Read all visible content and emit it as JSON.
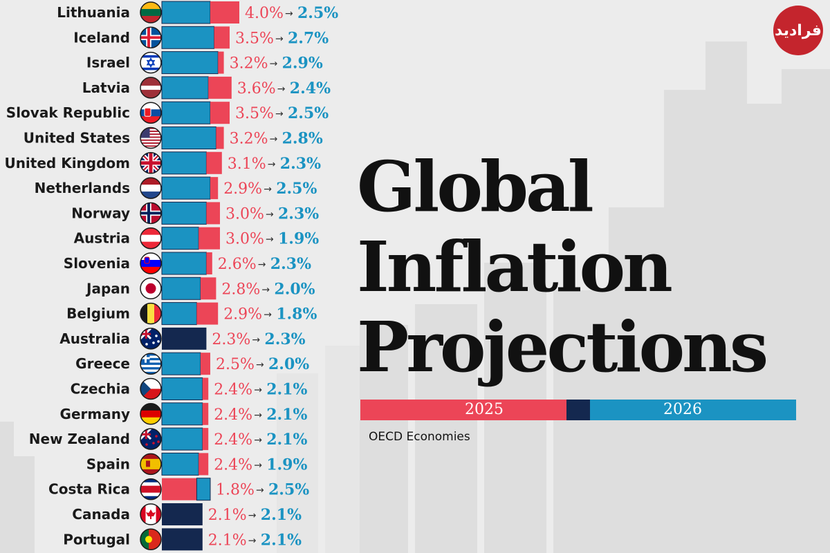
{
  "title": {
    "line1": "Global",
    "line2": "Inflation",
    "line3": "Projections"
  },
  "legend": {
    "label_2025": "2025",
    "label_2026": "2026"
  },
  "subtitle": "OECD Economies",
  "logo": {
    "text": "فرادید"
  },
  "colors": {
    "y2025": "#ec4557",
    "y2026": "#1b93c2",
    "equal": "#14284f"
  },
  "chart_data": {
    "type": "bar",
    "title": "Global Inflation Projections",
    "subtitle": "OECD Economies",
    "series": [
      {
        "name": "2025",
        "color": "#ec4557"
      },
      {
        "name": "2026",
        "color": "#1b93c2"
      }
    ],
    "rows": [
      {
        "country": "Lithuania",
        "flag": "lithuania-flag",
        "v2025": 4.0,
        "v2026": 2.5,
        "t2025": "4.0%",
        "t2026": "2.5%"
      },
      {
        "country": "Iceland",
        "flag": "iceland-flag",
        "v2025": 3.5,
        "v2026": 2.7,
        "t2025": "3.5%",
        "t2026": "2.7%"
      },
      {
        "country": "Israel",
        "flag": "israel-flag",
        "v2025": 3.2,
        "v2026": 2.9,
        "t2025": "3.2%",
        "t2026": "2.9%"
      },
      {
        "country": "Latvia",
        "flag": "latvia-flag",
        "v2025": 3.6,
        "v2026": 2.4,
        "t2025": "3.6%",
        "t2026": "2.4%"
      },
      {
        "country": "Slovak Republic",
        "flag": "slovakia-flag",
        "v2025": 3.5,
        "v2026": 2.5,
        "t2025": "3.5%",
        "t2026": "2.5%"
      },
      {
        "country": "United States",
        "flag": "usa-flag",
        "v2025": 3.2,
        "v2026": 2.8,
        "t2025": "3.2%",
        "t2026": "2.8%"
      },
      {
        "country": "United Kingdom",
        "flag": "uk-flag",
        "v2025": 3.1,
        "v2026": 2.3,
        "t2025": "3.1%",
        "t2026": "2.3%"
      },
      {
        "country": "Netherlands",
        "flag": "netherlands-flag",
        "v2025": 2.9,
        "v2026": 2.5,
        "t2025": "2.9%",
        "t2026": "2.5%"
      },
      {
        "country": "Norway",
        "flag": "norway-flag",
        "v2025": 3.0,
        "v2026": 2.3,
        "t2025": "3.0%",
        "t2026": "2.3%"
      },
      {
        "country": "Austria",
        "flag": "austria-flag",
        "v2025": 3.0,
        "v2026": 1.9,
        "t2025": "3.0%",
        "t2026": "1.9%"
      },
      {
        "country": "Slovenia",
        "flag": "slovenia-flag",
        "v2025": 2.6,
        "v2026": 2.3,
        "t2025": "2.6%",
        "t2026": "2.3%"
      },
      {
        "country": "Japan",
        "flag": "japan-flag",
        "v2025": 2.8,
        "v2026": 2.0,
        "t2025": "2.8%",
        "t2026": "2.0%"
      },
      {
        "country": "Belgium",
        "flag": "belgium-flag",
        "v2025": 2.9,
        "v2026": 1.8,
        "t2025": "2.9%",
        "t2026": "1.8%"
      },
      {
        "country": "Australia",
        "flag": "australia-flag",
        "v2025": 2.3,
        "v2026": 2.3,
        "t2025": "2.3%",
        "t2026": "2.3%"
      },
      {
        "country": "Greece",
        "flag": "greece-flag",
        "v2025": 2.5,
        "v2026": 2.0,
        "t2025": "2.5%",
        "t2026": "2.0%"
      },
      {
        "country": "Czechia",
        "flag": "czechia-flag",
        "v2025": 2.4,
        "v2026": 2.1,
        "t2025": "2.4%",
        "t2026": "2.1%"
      },
      {
        "country": "Germany",
        "flag": "germany-flag",
        "v2025": 2.4,
        "v2026": 2.1,
        "t2025": "2.4%",
        "t2026": "2.1%"
      },
      {
        "country": "New Zealand",
        "flag": "new-zealand-flag",
        "v2025": 2.4,
        "v2026": 2.1,
        "t2025": "2.4%",
        "t2026": "2.1%"
      },
      {
        "country": "Spain",
        "flag": "spain-flag",
        "v2025": 2.4,
        "v2026": 1.9,
        "t2025": "2.4%",
        "t2026": "1.9%"
      },
      {
        "country": "Costa Rica",
        "flag": "costa-rica-flag",
        "v2025": 1.8,
        "v2026": 2.5,
        "t2025": "1.8%",
        "t2026": "2.5%"
      },
      {
        "country": "Canada",
        "flag": "canada-flag",
        "v2025": 2.1,
        "v2026": 2.1,
        "t2025": "2.1%",
        "t2026": "2.1%"
      },
      {
        "country": "Portugal",
        "flag": "portugal-flag",
        "v2025": 2.1,
        "v2026": 2.1,
        "t2025": "2.1%",
        "t2026": "2.1%"
      }
    ]
  }
}
